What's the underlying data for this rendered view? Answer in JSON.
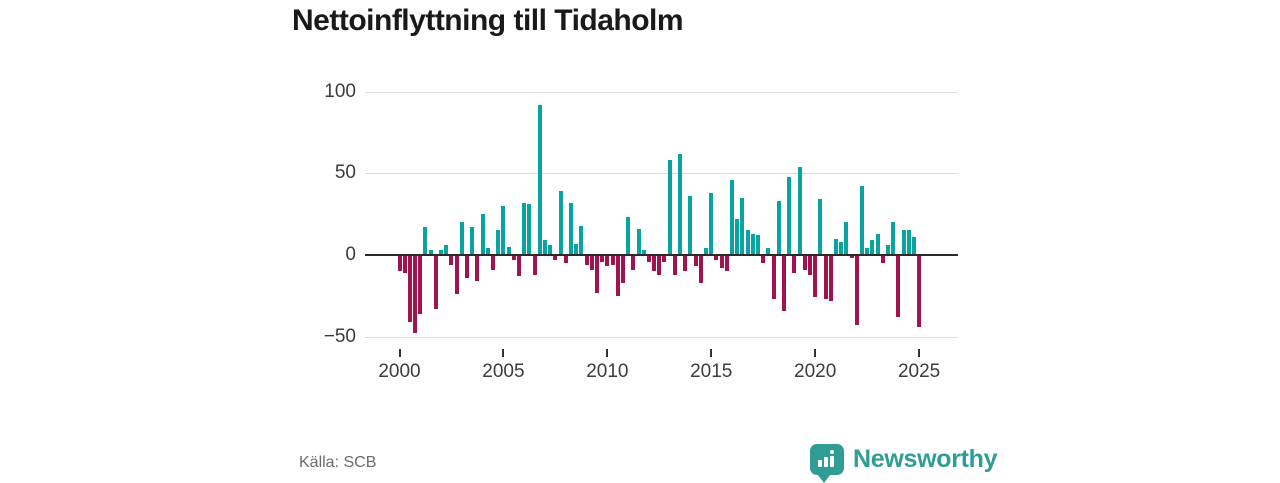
{
  "title": "Nettoinflyttning till Tidaholm",
  "source": "Källa: SCB",
  "logo": {
    "text": "Newsworthy",
    "color": "#2f9d96"
  },
  "colors": {
    "positive_bar": "#09a4a0",
    "negative_bar": "#a0134f",
    "gridline": "#dcdcdc",
    "zero_line": "#2a2a2a",
    "axis_text": "#3c3c3c",
    "title_text": "#191919",
    "source_text": "#6b6b6b"
  },
  "chart_data": {
    "type": "bar",
    "title": "Nettoinflyttning till Tidaholm",
    "frequency": "quarterly",
    "x_start": "2000 Q1",
    "x_end": "2025 Q1",
    "values": [
      -10,
      -11,
      -41,
      -48,
      -36,
      17,
      3,
      -33,
      3,
      6,
      -6,
      -24,
      20,
      -14,
      17,
      -16,
      25,
      4,
      -9,
      15,
      30,
      5,
      -3,
      -13,
      32,
      31,
      -12,
      92,
      9,
      6,
      -3,
      39,
      -5,
      32,
      7,
      18,
      -6,
      -9,
      -23,
      -4,
      -7,
      -6,
      -25,
      -17,
      23,
      -9,
      16,
      3,
      -4,
      -10,
      -12,
      -4,
      58,
      -12,
      62,
      -10,
      36,
      -7,
      -17,
      4,
      38,
      -3,
      -8,
      -10,
      46,
      22,
      35,
      15,
      13,
      12,
      -5,
      4,
      -27,
      33,
      -34,
      48,
      -11,
      54,
      -9,
      -12,
      -26,
      34,
      -27,
      -28,
      10,
      8,
      20,
      -2,
      -43,
      42,
      4,
      9,
      13,
      -5,
      6,
      20,
      -38,
      15,
      15,
      11,
      -44
    ],
    "x_ticks": [
      2000,
      2005,
      2010,
      2015,
      2020,
      2025
    ],
    "y_ticks": [
      100,
      50,
      0,
      -50
    ],
    "ylim": [
      -55,
      105
    ],
    "grid": "horizontal",
    "legend": "none"
  }
}
